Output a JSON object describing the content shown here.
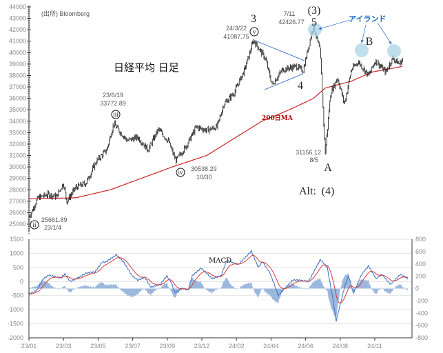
{
  "source_label": "(出所) Bloomberg",
  "colors": {
    "price": "#111111",
    "ma": "#cc2222",
    "trend": "#4a7cc8",
    "island": "#a9d4e6",
    "macd": "#3a6fc4",
    "signal": "#d83a3a",
    "hist": "#9db8dd",
    "island_text": "#1a6fc4"
  },
  "chart_data": [
    {
      "type": "line",
      "title": "日経平均 日足",
      "ylim": [
        25000,
        44000
      ],
      "yticks": [
        "44000",
        "43000",
        "42000",
        "41000",
        "40000",
        "39000",
        "38000",
        "37000",
        "36000",
        "35000",
        "34000",
        "33000",
        "32000",
        "31000",
        "30000",
        "29000",
        "28000",
        "27000",
        "26000",
        "25000"
      ],
      "x_unit": "trading-day index",
      "series": [
        {
          "name": "日経平均",
          "points": [
            [
              0,
              25661
            ],
            [
              5,
              26200
            ],
            [
              13,
              27300
            ],
            [
              28,
              27600
            ],
            [
              40,
              27400
            ],
            [
              50,
              28600
            ],
            [
              55,
              27000
            ],
            [
              68,
              28200
            ],
            [
              83,
              28600
            ],
            [
              98,
              30500
            ],
            [
              113,
              31500
            ],
            [
              123,
              33772
            ],
            [
              133,
              33000
            ],
            [
              143,
              32300
            ],
            [
              158,
              32600
            ],
            [
              173,
              31500
            ],
            [
              188,
              33300
            ],
            [
              203,
              32200
            ],
            [
              213,
              30538
            ],
            [
              228,
              31800
            ],
            [
              243,
              33500
            ],
            [
              258,
              33200
            ],
            [
              273,
              33500
            ],
            [
              283,
              35500
            ],
            [
              298,
              36500
            ],
            [
              313,
              38500
            ],
            [
              326,
              41087
            ],
            [
              343,
              39500
            ],
            [
              353,
              37200
            ],
            [
              368,
              38500
            ],
            [
              388,
              38800
            ],
            [
              398,
              38400
            ],
            [
              413,
              42426
            ],
            [
              423,
              40000
            ],
            [
              430,
              31156
            ],
            [
              438,
              36500
            ],
            [
              448,
              37800
            ],
            [
              458,
              35500
            ],
            [
              468,
              38500
            ],
            [
              478,
              39200
            ],
            [
              493,
              38000
            ],
            [
              503,
              39300
            ],
            [
              518,
              38300
            ],
            [
              528,
              39500
            ],
            [
              538,
              39000
            ],
            [
              543,
              39500
            ]
          ]
        },
        {
          "name": "200日MA",
          "points": [
            [
              0,
              27200
            ],
            [
              68,
              27300
            ],
            [
              118,
              28000
            ],
            [
              163,
              29000
            ],
            [
              208,
              30000
            ],
            [
              258,
              31000
            ],
            [
              298,
              32500
            ],
            [
              338,
              34000
            ],
            [
              378,
              35000
            ],
            [
              413,
              36000
            ],
            [
              430,
              36900
            ],
            [
              468,
              37500
            ],
            [
              498,
              38300
            ],
            [
              543,
              38800
            ]
          ]
        }
      ],
      "annotations": {
        "ma_label": "200日MA",
        "ii_value": "25661.89",
        "ii_date": "23/1/4",
        "ii_mark": "ii",
        "iii_date": "23/6/19",
        "iii_value": "33772.89",
        "iii_mark": "iii",
        "iv_value": "30538.29",
        "iv_date": "10/30",
        "iv_mark": "iv",
        "v_date": "24/3/22",
        "v_value": "41087.75",
        "v_mark": "v",
        "peak_date": "7/11",
        "peak_value": "42426.77",
        "low_value": "31156.12",
        "low_date": "8/5",
        "wave3": "3",
        "wave4": "4",
        "wave5": "5",
        "wave3_paren": "(3)",
        "waveA": "A",
        "waveB": "B",
        "alt": "Alt:",
        "alt4": "(4)",
        "island": "アイランド"
      }
    },
    {
      "type": "line",
      "title": "MACD",
      "ylim_left": [
        -2000,
        1500
      ],
      "ylim_right": [
        -800,
        800
      ],
      "yticks_left": [
        "1500",
        "1000",
        "500",
        "0",
        "-500",
        "-1000",
        "-1500",
        "-2000"
      ],
      "yticks_right": [
        "800",
        "600",
        "400",
        "200",
        "0",
        "-200",
        "-400",
        "-600",
        "-800"
      ],
      "xticks": [
        "23/01",
        "23/03",
        "23/05",
        "23/07",
        "23/09",
        "23/12",
        "24/02",
        "24/04",
        "24/06",
        "24/08",
        "24/11"
      ],
      "series": [
        {
          "name": "MACD",
          "points": [
            [
              0,
              -450
            ],
            [
              12,
              -300
            ],
            [
              21,
              100
            ],
            [
              29,
              230
            ],
            [
              46,
              120
            ],
            [
              52,
              270
            ],
            [
              60,
              0
            ],
            [
              73,
              150
            ],
            [
              83,
              300
            ],
            [
              96,
              340
            ],
            [
              106,
              680
            ],
            [
              112,
              700
            ],
            [
              127,
              950
            ],
            [
              137,
              700
            ],
            [
              150,
              200
            ],
            [
              158,
              50
            ],
            [
              168,
              150
            ],
            [
              177,
              -200
            ],
            [
              191,
              -100
            ],
            [
              200,
              200
            ],
            [
              206,
              0
            ],
            [
              212,
              -400
            ],
            [
              223,
              -250
            ],
            [
              231,
              -300
            ],
            [
              237,
              200
            ],
            [
              250,
              480
            ],
            [
              266,
              100
            ],
            [
              279,
              200
            ],
            [
              287,
              750
            ],
            [
              304,
              600
            ],
            [
              323,
              1080
            ],
            [
              333,
              500
            ],
            [
              339,
              700
            ],
            [
              350,
              300
            ],
            [
              362,
              -500
            ],
            [
              371,
              -250
            ],
            [
              383,
              50
            ],
            [
              391,
              50
            ],
            [
              406,
              0
            ],
            [
              423,
              780
            ],
            [
              433,
              500
            ],
            [
              441,
              -600
            ],
            [
              446,
              -1400
            ],
            [
              458,
              -200
            ],
            [
              464,
              200
            ],
            [
              471,
              -400
            ],
            [
              483,
              250
            ],
            [
              493,
              550
            ],
            [
              504,
              100
            ],
            [
              512,
              250
            ],
            [
              525,
              -100
            ],
            [
              539,
              250
            ],
            [
              550,
              100
            ]
          ]
        }
      ]
    }
  ]
}
